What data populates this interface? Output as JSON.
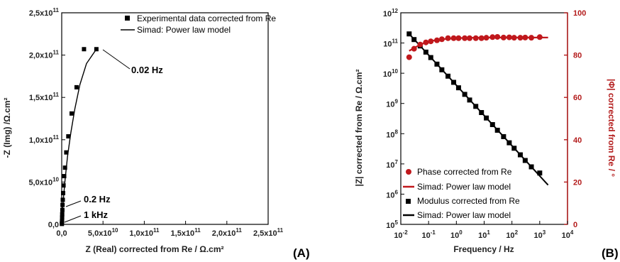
{
  "colors": {
    "black": "#000000",
    "red": "#c0181c",
    "red_axis": "#b31b1b"
  },
  "chart_data": [
    {
      "panel_label": "(A)",
      "type": "scatter",
      "xlabel": "Z (Real) corrected from Re / Ω.cm²",
      "ylabel": "-Z (Img) /Ω.cm²",
      "xlim": [
        0,
        250000000000.0
      ],
      "ylim": [
        0,
        250000000000.0
      ],
      "xticks": [
        {
          "v": 0,
          "m": "0,0",
          "e": ""
        },
        {
          "v": 50000000000.0,
          "m": "5,0x10",
          "e": "10"
        },
        {
          "v": 100000000000.0,
          "m": "1,0x10",
          "e": "11"
        },
        {
          "v": 150000000000.0,
          "m": "1,5x10",
          "e": "11"
        },
        {
          "v": 200000000000.0,
          "m": "2,0x10",
          "e": "11"
        },
        {
          "v": 250000000000.0,
          "m": "2,5x10",
          "e": "11"
        }
      ],
      "yticks": [
        {
          "v": 0,
          "m": "0,0",
          "e": ""
        },
        {
          "v": 50000000000.0,
          "m": "5,0x10",
          "e": "10"
        },
        {
          "v": 100000000000.0,
          "m": "1,0x10",
          "e": "11"
        },
        {
          "v": 150000000000.0,
          "m": "1,5x10",
          "e": "11"
        },
        {
          "v": 200000000000.0,
          "m": "2,0x10",
          "e": "11"
        },
        {
          "v": 250000000000.0,
          "m": "2,5x10",
          "e": "11"
        }
      ],
      "legend": [
        {
          "label": "Experimental data corrected from Re",
          "marker": "square"
        },
        {
          "label": "Simad: Power law model",
          "marker": "line"
        }
      ],
      "series": [
        {
          "name": "Experimental data corrected from Re",
          "marker": "square",
          "x": [
            200000000.0,
            300000000.0,
            400000000.0,
            500000000.0,
            600000000.0,
            800000000.0,
            1000000000.0,
            1300000000.0,
            1700000000.0,
            2200000000.0,
            3000000000.0,
            4000000000.0,
            5500000000.0,
            8000000000.0,
            12000000000.0,
            18000000000.0,
            27000000000.0,
            42000000000.0
          ],
          "y": [
            500000000.0,
            2000000000.0,
            4000000000.0,
            8000000000.0,
            12000000000.0,
            17000000000.0,
            23000000000.0,
            29000000000.0,
            37000000000.0,
            46000000000.0,
            57000000000.0,
            67000000000.0,
            85000000000.0,
            104000000000.0,
            131000000000.0,
            162000000000.0,
            207000000000.0,
            207000000000.0
          ]
        },
        {
          "name": "Simad: Power law model",
          "marker": "line",
          "x": [
            0,
            500000000.0,
            1000000000.0,
            2000000000.0,
            4000000000.0,
            7000000000.0,
            11000000000.0,
            16000000000.0,
            22000000000.0,
            30000000000.0,
            42000000000.0
          ],
          "y": [
            0,
            6000000000.0,
            15000000000.0,
            30000000000.0,
            52000000000.0,
            80000000000.0,
            108000000000.0,
            137000000000.0,
            165000000000.0,
            190000000000.0,
            207000000000.0
          ]
        }
      ],
      "annotations": [
        {
          "text": "0.02 Hz",
          "x": 42000000000.0,
          "y": 207000000000.0
        },
        {
          "text": "0.2 Hz",
          "x": 1000000000.0,
          "y": 18000000000.0
        },
        {
          "text": "1 kHz",
          "x": 500000000.0,
          "y": 1000000000.0
        }
      ]
    },
    {
      "panel_label": "(B)",
      "type": "scatter",
      "xlabel": "Frequency / Hz",
      "ylabel": "|Z| corrected from Re / Ω.cm²",
      "ylabel_right": "|Φ| corrected from Re / °",
      "xscale": "log",
      "yscale": "log",
      "xlim": [
        0.01,
        10000
      ],
      "ylim": [
        100000,
        1000000000000
      ],
      "ylim_right": [
        0,
        100
      ],
      "xticks": [
        {
          "v": 0.01,
          "m": "10",
          "e": "-2"
        },
        {
          "v": 0.1,
          "m": "10",
          "e": "-1"
        },
        {
          "v": 1,
          "m": "10",
          "e": "0"
        },
        {
          "v": 10,
          "m": "10",
          "e": "1"
        },
        {
          "v": 100,
          "m": "10",
          "e": "2"
        },
        {
          "v": 1000,
          "m": "10",
          "e": "3"
        },
        {
          "v": 10000,
          "m": "10",
          "e": "4"
        }
      ],
      "yticks": [
        {
          "v": 100000,
          "m": "10",
          "e": "5"
        },
        {
          "v": 1000000,
          "m": "10",
          "e": "6"
        },
        {
          "v": 10000000,
          "m": "10",
          "e": "7"
        },
        {
          "v": 100000000,
          "m": "10",
          "e": "8"
        },
        {
          "v": 1000000000,
          "m": "10",
          "e": "9"
        },
        {
          "v": 10000000000,
          "m": "10",
          "e": "10"
        },
        {
          "v": 100000000000,
          "m": "10",
          "e": "11"
        },
        {
          "v": 1000000000000,
          "m": "10",
          "e": "12"
        }
      ],
      "yticks_right": [
        0,
        20,
        40,
        60,
        80,
        100
      ],
      "legend": [
        {
          "label": "Phase corrected from Re",
          "marker": "circle",
          "color": "#c0181c"
        },
        {
          "label": "Simad: Power law model",
          "marker": "line",
          "color": "#c0181c"
        },
        {
          "label": "Modulus corrected from Re",
          "marker": "square",
          "color": "#000000"
        },
        {
          "label": "Simad: Power law model",
          "marker": "line",
          "color": "#000000"
        }
      ],
      "series": [
        {
          "name": "Phase corrected from Re",
          "axis": "right",
          "marker": "circle",
          "color": "#c0181c",
          "x": [
            0.02,
            0.03,
            0.05,
            0.08,
            0.12,
            0.2,
            0.3,
            0.5,
            0.8,
            1.2,
            2,
            3,
            5,
            8,
            12,
            20,
            30,
            50,
            80,
            120,
            200,
            300,
            500,
            1000
          ],
          "y": [
            79,
            83,
            85,
            86,
            86.5,
            87,
            87.5,
            88,
            88,
            88,
            88,
            88,
            88,
            88,
            88.2,
            88.5,
            88.6,
            88.3,
            88.4,
            88.2,
            88.2,
            88.3,
            88.2,
            88.5
          ]
        },
        {
          "name": "Simad: Power law model",
          "axis": "right",
          "marker": "line",
          "color": "#c0181c",
          "x": [
            0.02,
            0.05,
            0.1,
            0.3,
            1,
            3,
            10,
            100,
            1000,
            2000
          ],
          "y": [
            82,
            85,
            86.5,
            87.5,
            88,
            88.2,
            88.3,
            88.3,
            88.3,
            88.3
          ]
        },
        {
          "name": "Modulus corrected from Re",
          "axis": "left",
          "marker": "square",
          "color": "#000000",
          "x": [
            0.02,
            0.03,
            0.05,
            0.08,
            0.12,
            0.2,
            0.3,
            0.5,
            0.8,
            1.2,
            2,
            3,
            5,
            8,
            12,
            20,
            30,
            50,
            80,
            120,
            200,
            300,
            500,
            1000
          ],
          "y": [
            200000000000,
            130000000000,
            80000000000,
            50000000000,
            33000000000,
            20000000000,
            13000000000,
            8000000000,
            5000000000,
            3300000000,
            2000000000,
            1300000000,
            800000000,
            500000000,
            330000000,
            200000000,
            130000000,
            80000000,
            50000000,
            33000000,
            20000000,
            13000000,
            8000000,
            5000000
          ]
        },
        {
          "name": "Simad: Power law model",
          "axis": "left",
          "marker": "line",
          "color": "#000000",
          "x": [
            0.02,
            2000
          ],
          "y": [
            200000000000,
            2000000
          ]
        }
      ]
    }
  ]
}
